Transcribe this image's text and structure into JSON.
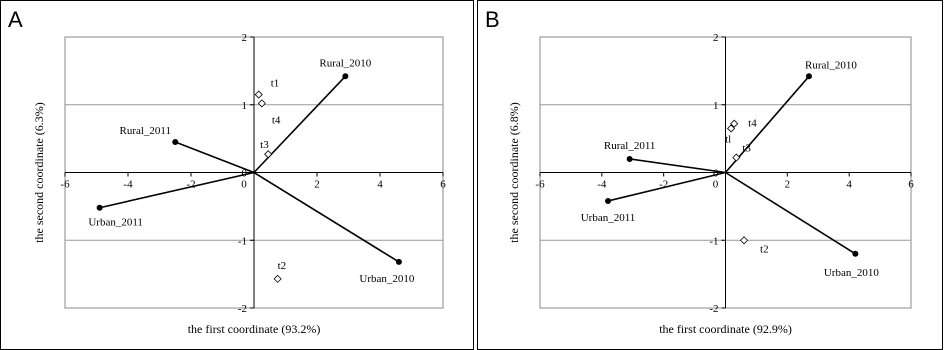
{
  "chart_data": [
    {
      "type": "scatter",
      "panel_label": "A",
      "xlabel": "the first coordinate (93.2%)",
      "ylabel": "the second coordinate (6.3%)",
      "xlim": [
        -6,
        6
      ],
      "ylim": [
        -2,
        2
      ],
      "xticks": [
        "-6",
        "-4",
        "-2",
        "0",
        "2",
        "4",
        "6"
      ],
      "yticks": [
        "2",
        "1",
        "0",
        "-1",
        "-2"
      ],
      "grid": "horizontal",
      "vectors": [
        {
          "label": "Rural_2010",
          "x": 2.9,
          "y": 1.42
        },
        {
          "label": "Rural_2011",
          "x": -2.5,
          "y": 0.45
        },
        {
          "label": "Urban_2011",
          "x": -4.9,
          "y": -0.52
        },
        {
          "label": "Urban_2010",
          "x": 4.6,
          "y": -1.32
        }
      ],
      "points": [
        {
          "label": "t1",
          "x": 0.15,
          "y": 1.15
        },
        {
          "label": "t4",
          "x": 0.25,
          "y": 1.02
        },
        {
          "label": "t3",
          "x": 0.45,
          "y": 0.27
        },
        {
          "label": "t2",
          "x": 0.75,
          "y": -1.57
        }
      ]
    },
    {
      "type": "scatter",
      "panel_label": "B",
      "xlabel": "the first coordinate (92.9%)",
      "ylabel": "the second coordinate (6.8%)",
      "xlim": [
        -6,
        6
      ],
      "ylim": [
        -2,
        2
      ],
      "xticks": [
        "-6",
        "-4",
        "-2",
        "0",
        "2",
        "4",
        "6"
      ],
      "yticks": [
        "2",
        "1",
        "0",
        "-1",
        "-2"
      ],
      "grid": "horizontal",
      "vectors": [
        {
          "label": "Rural_2010",
          "x": 2.7,
          "y": 1.42
        },
        {
          "label": "Rural_2011",
          "x": -3.1,
          "y": 0.2
        },
        {
          "label": "Urban_2011",
          "x": -3.8,
          "y": -0.42
        },
        {
          "label": "Urban_2010",
          "x": 4.2,
          "y": -1.2
        }
      ],
      "points": [
        {
          "label": "t4",
          "x": 0.28,
          "y": 0.72
        },
        {
          "label": "tl",
          "x": 0.18,
          "y": 0.65
        },
        {
          "label": "t3",
          "x": 0.35,
          "y": 0.22
        },
        {
          "label": "t2",
          "x": 0.6,
          "y": -1.0
        }
      ]
    }
  ]
}
